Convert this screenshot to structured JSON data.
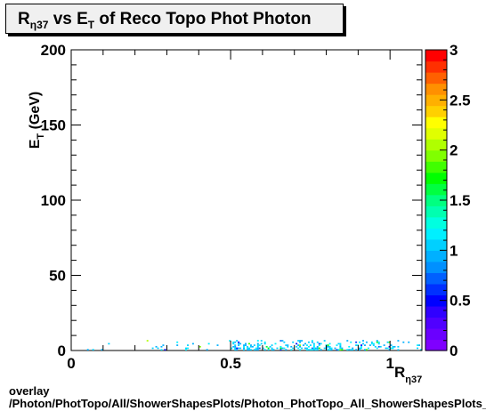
{
  "chart_data": {
    "type": "heatmap",
    "title_parts": {
      "r": "R",
      "r_sub": "η37",
      "mid": " vs E",
      "e_sub": "T",
      "rest": " of Reco Topo Phot Photon"
    },
    "xlabel": {
      "main": "R",
      "sub": "η37"
    },
    "ylabel": {
      "main": "E",
      "sub": "T",
      "rest": " (GeV)"
    },
    "xlim": [
      0,
      1.1
    ],
    "ylim": [
      0,
      200
    ],
    "x_ticks": [
      "0",
      "0.5",
      "1"
    ],
    "y_ticks": [
      "0",
      "50",
      "100",
      "150",
      "200"
    ],
    "z_ticks": [
      "0",
      "0.5",
      "1",
      "1.5",
      "2",
      "2.5",
      "3"
    ],
    "zlim": [
      0,
      3
    ],
    "palette": [
      "#7f00ff",
      "#6a00ff",
      "#5000ff",
      "#3000ff",
      "#0000ff",
      "#0030ff",
      "#0060ff",
      "#0090ff",
      "#00b0ff",
      "#00d0ff",
      "#00f0ff",
      "#00ffe0",
      "#00ffb0",
      "#00ff80",
      "#00ff40",
      "#00ff00",
      "#40ff00",
      "#80ff00",
      "#b0ff00",
      "#e0ff00",
      "#ffff00",
      "#ffd000",
      "#ffb000",
      "#ff9000",
      "#ff6000",
      "#ff3000",
      "#ff0000"
    ]
  },
  "footer": {
    "line1": "overlay",
    "line2": "/Photon/PhotTopo/All/ShowerShapesPlots/Photon_PhotTopo_All_ShowerShapesPlots_"
  }
}
